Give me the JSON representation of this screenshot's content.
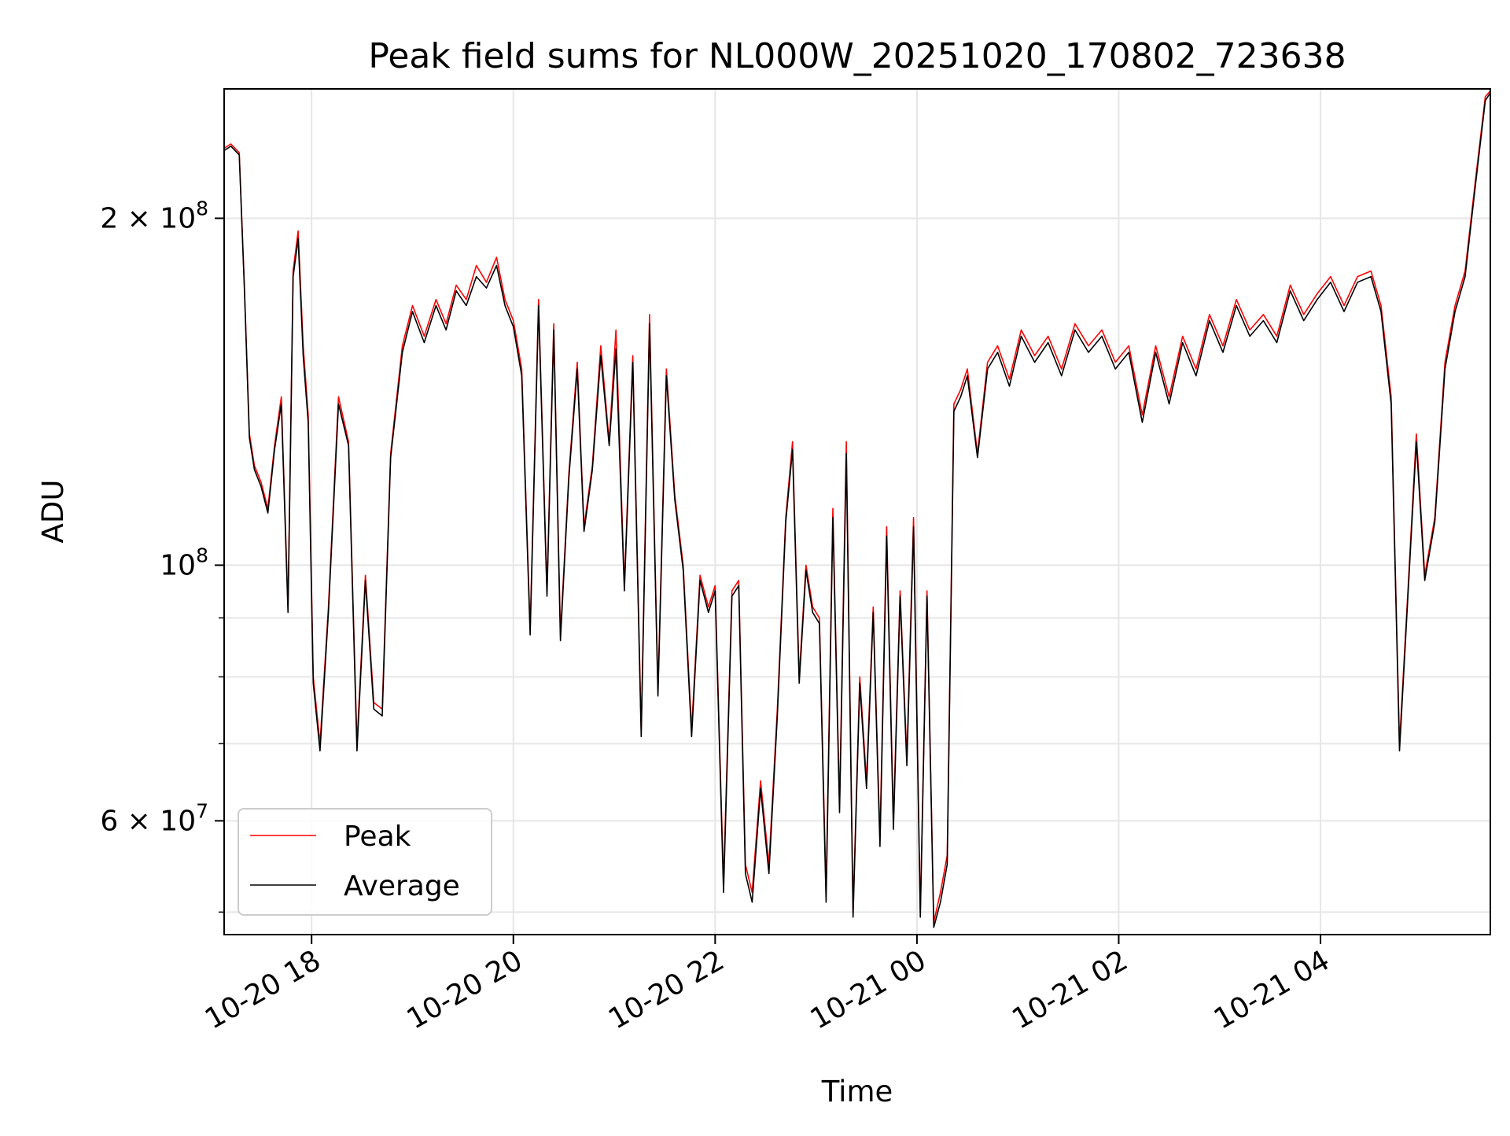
{
  "chart_data": {
    "type": "line",
    "title": "Peak field sums for NL000W_20251020_170802_723638",
    "xlabel": "Time",
    "ylabel": "ADU",
    "y_scale": "log",
    "x_axis_type": "time",
    "xlim": [
      "2025-10-20 17:08",
      "2025-10-21 05:41"
    ],
    "ylim": [
      47800000,
      259000000
    ],
    "x_ticks": [
      {
        "t": "2025-10-20 18:00",
        "label": "10-20 18"
      },
      {
        "t": "2025-10-20 20:00",
        "label": "10-20 20"
      },
      {
        "t": "2025-10-20 22:00",
        "label": "10-20 22"
      },
      {
        "t": "2025-10-21 00:00",
        "label": "10-21 00"
      },
      {
        "t": "2025-10-21 02:00",
        "label": "10-21 02"
      },
      {
        "t": "2025-10-21 04:00",
        "label": "10-21 04"
      }
    ],
    "y_major_ticks": [
      {
        "v": 60000000,
        "mant": "6",
        "exp": "7"
      },
      {
        "v": 100000000,
        "mant": "",
        "exp": "8"
      },
      {
        "v": 200000000,
        "mant": "2",
        "exp": "8"
      }
    ],
    "y_minor_ticks": [
      50000000,
      70000000,
      80000000,
      90000000
    ],
    "grid": true,
    "legend_position": "bottom-left",
    "series": [
      {
        "name": "Peak",
        "color": "#ff0000",
        "x": [
          "2025-10-20 17:08",
          "2025-10-20 17:12",
          "2025-10-20 17:17",
          "2025-10-20 17:20",
          "2025-10-20 17:23",
          "2025-10-20 17:26",
          "2025-10-20 17:30",
          "2025-10-20 17:34",
          "2025-10-20 17:38",
          "2025-10-20 17:42",
          "2025-10-20 17:46",
          "2025-10-20 17:49",
          "2025-10-20 17:52",
          "2025-10-20 17:55",
          "2025-10-20 17:58",
          "2025-10-20 18:01",
          "2025-10-20 18:05",
          "2025-10-20 18:10",
          "2025-10-20 18:16",
          "2025-10-20 18:22",
          "2025-10-20 18:27",
          "2025-10-20 18:32",
          "2025-10-20 18:37",
          "2025-10-20 18:42",
          "2025-10-20 18:47",
          "2025-10-20 18:54",
          "2025-10-20 19:00",
          "2025-10-20 19:07",
          "2025-10-20 19:14",
          "2025-10-20 19:20",
          "2025-10-20 19:26",
          "2025-10-20 19:32",
          "2025-10-20 19:38",
          "2025-10-20 19:44",
          "2025-10-20 19:50",
          "2025-10-20 19:55",
          "2025-10-20 20:00",
          "2025-10-20 20:05",
          "2025-10-20 20:10",
          "2025-10-20 20:15",
          "2025-10-20 20:20",
          "2025-10-20 20:24",
          "2025-10-20 20:28",
          "2025-10-20 20:33",
          "2025-10-20 20:38",
          "2025-10-20 20:42",
          "2025-10-20 20:47",
          "2025-10-20 20:52",
          "2025-10-20 20:57",
          "2025-10-20 21:01",
          "2025-10-20 21:06",
          "2025-10-20 21:11",
          "2025-10-20 21:16",
          "2025-10-20 21:21",
          "2025-10-20 21:26",
          "2025-10-20 21:31",
          "2025-10-20 21:36",
          "2025-10-20 21:41",
          "2025-10-20 21:46",
          "2025-10-20 21:51",
          "2025-10-20 21:56",
          "2025-10-20 22:00",
          "2025-10-20 22:05",
          "2025-10-20 22:10",
          "2025-10-20 22:14",
          "2025-10-20 22:18",
          "2025-10-20 22:22",
          "2025-10-20 22:27",
          "2025-10-20 22:32",
          "2025-10-20 22:37",
          "2025-10-20 22:42",
          "2025-10-20 22:46",
          "2025-10-20 22:50",
          "2025-10-20 22:54",
          "2025-10-20 22:58",
          "2025-10-20 23:02",
          "2025-10-20 23:06",
          "2025-10-20 23:10",
          "2025-10-20 23:14",
          "2025-10-20 23:18",
          "2025-10-20 23:22",
          "2025-10-20 23:26",
          "2025-10-20 23:30",
          "2025-10-20 23:34",
          "2025-10-20 23:38",
          "2025-10-20 23:42",
          "2025-10-20 23:46",
          "2025-10-20 23:50",
          "2025-10-20 23:54",
          "2025-10-20 23:58",
          "2025-10-21 00:02",
          "2025-10-21 00:06",
          "2025-10-21 00:10",
          "2025-10-21 00:14",
          "2025-10-21 00:18",
          "2025-10-21 00:22",
          "2025-10-21 00:26",
          "2025-10-21 00:30",
          "2025-10-21 00:36",
          "2025-10-21 00:42",
          "2025-10-21 00:48",
          "2025-10-21 00:55",
          "2025-10-21 01:02",
          "2025-10-21 01:10",
          "2025-10-21 01:18",
          "2025-10-21 01:26",
          "2025-10-21 01:34",
          "2025-10-21 01:42",
          "2025-10-21 01:50",
          "2025-10-21 01:58",
          "2025-10-21 02:06",
          "2025-10-21 02:14",
          "2025-10-21 02:22",
          "2025-10-21 02:30",
          "2025-10-21 02:38",
          "2025-10-21 02:46",
          "2025-10-21 02:54",
          "2025-10-21 03:02",
          "2025-10-21 03:10",
          "2025-10-21 03:18",
          "2025-10-21 03:26",
          "2025-10-21 03:34",
          "2025-10-21 03:42",
          "2025-10-21 03:50",
          "2025-10-21 03:58",
          "2025-10-21 04:06",
          "2025-10-21 04:14",
          "2025-10-21 04:22",
          "2025-10-21 04:30",
          "2025-10-21 04:36",
          "2025-10-21 04:42",
          "2025-10-21 04:47",
          "2025-10-21 04:52",
          "2025-10-21 04:57",
          "2025-10-21 05:02",
          "2025-10-21 05:08",
          "2025-10-21 05:14",
          "2025-10-21 05:20",
          "2025-10-21 05:26",
          "2025-10-21 05:32",
          "2025-10-21 05:38",
          "2025-10-21 05:41"
        ],
        "y": [
          230000000,
          232000000,
          228000000,
          175000000,
          130000000,
          122000000,
          118000000,
          112000000,
          127000000,
          140000000,
          92000000,
          180000000,
          195000000,
          155000000,
          135000000,
          80000000,
          70000000,
          92000000,
          140000000,
          128000000,
          70000000,
          98000000,
          76000000,
          75000000,
          125000000,
          155000000,
          168000000,
          158000000,
          170000000,
          162000000,
          175000000,
          170000000,
          182000000,
          176000000,
          185000000,
          170000000,
          163000000,
          148000000,
          88000000,
          170000000,
          95000000,
          162000000,
          87000000,
          120000000,
          150000000,
          108000000,
          122000000,
          155000000,
          128000000,
          160000000,
          96000000,
          152000000,
          72000000,
          165000000,
          78000000,
          148000000,
          115000000,
          100000000,
          72000000,
          98000000,
          92000000,
          96000000,
          53000000,
          95000000,
          97000000,
          55000000,
          52000000,
          65000000,
          55000000,
          75000000,
          110000000,
          128000000,
          80000000,
          100000000,
          92000000,
          90000000,
          52000000,
          112000000,
          62000000,
          128000000,
          50000000,
          80000000,
          65000000,
          92000000,
          58000000,
          108000000,
          60000000,
          95000000,
          68000000,
          110000000,
          50000000,
          95000000,
          49000000,
          52000000,
          56000000,
          138000000,
          142000000,
          148000000,
          125000000,
          150000000,
          155000000,
          145000000,
          160000000,
          152000000,
          158000000,
          148000000,
          162000000,
          155000000,
          160000000,
          150000000,
          155000000,
          135000000,
          155000000,
          140000000,
          158000000,
          148000000,
          165000000,
          155000000,
          170000000,
          160000000,
          165000000,
          158000000,
          175000000,
          165000000,
          172000000,
          178000000,
          168000000,
          178000000,
          180000000,
          168000000,
          140000000,
          70000000,
          95000000,
          130000000,
          98000000,
          110000000,
          150000000,
          168000000,
          180000000,
          215000000,
          255000000,
          258000000
        ]
      },
      {
        "name": "Average",
        "color": "#000000",
        "x": [
          "2025-10-20 17:08",
          "2025-10-20 17:12",
          "2025-10-20 17:17",
          "2025-10-20 17:20",
          "2025-10-20 17:23",
          "2025-10-20 17:26",
          "2025-10-20 17:30",
          "2025-10-20 17:34",
          "2025-10-20 17:38",
          "2025-10-20 17:42",
          "2025-10-20 17:46",
          "2025-10-20 17:49",
          "2025-10-20 17:52",
          "2025-10-20 17:55",
          "2025-10-20 17:58",
          "2025-10-20 18:01",
          "2025-10-20 18:05",
          "2025-10-20 18:10",
          "2025-10-20 18:16",
          "2025-10-20 18:22",
          "2025-10-20 18:27",
          "2025-10-20 18:32",
          "2025-10-20 18:37",
          "2025-10-20 18:42",
          "2025-10-20 18:47",
          "2025-10-20 18:54",
          "2025-10-20 19:00",
          "2025-10-20 19:07",
          "2025-10-20 19:14",
          "2025-10-20 19:20",
          "2025-10-20 19:26",
          "2025-10-20 19:32",
          "2025-10-20 19:38",
          "2025-10-20 19:44",
          "2025-10-20 19:50",
          "2025-10-20 19:55",
          "2025-10-20 20:00",
          "2025-10-20 20:05",
          "2025-10-20 20:10",
          "2025-10-20 20:15",
          "2025-10-20 20:20",
          "2025-10-20 20:24",
          "2025-10-20 20:28",
          "2025-10-20 20:33",
          "2025-10-20 20:38",
          "2025-10-20 20:42",
          "2025-10-20 20:47",
          "2025-10-20 20:52",
          "2025-10-20 20:57",
          "2025-10-20 21:01",
          "2025-10-20 21:06",
          "2025-10-20 21:11",
          "2025-10-20 21:16",
          "2025-10-20 21:21",
          "2025-10-20 21:26",
          "2025-10-20 21:31",
          "2025-10-20 21:36",
          "2025-10-20 21:41",
          "2025-10-20 21:46",
          "2025-10-20 21:51",
          "2025-10-20 21:56",
          "2025-10-20 22:00",
          "2025-10-20 22:05",
          "2025-10-20 22:10",
          "2025-10-20 22:14",
          "2025-10-20 22:18",
          "2025-10-20 22:22",
          "2025-10-20 22:27",
          "2025-10-20 22:32",
          "2025-10-20 22:37",
          "2025-10-20 22:42",
          "2025-10-20 22:46",
          "2025-10-20 22:50",
          "2025-10-20 22:54",
          "2025-10-20 22:58",
          "2025-10-20 23:02",
          "2025-10-20 23:06",
          "2025-10-20 23:10",
          "2025-10-20 23:14",
          "2025-10-20 23:18",
          "2025-10-20 23:22",
          "2025-10-20 23:26",
          "2025-10-20 23:30",
          "2025-10-20 23:34",
          "2025-10-20 23:38",
          "2025-10-20 23:42",
          "2025-10-20 23:46",
          "2025-10-20 23:50",
          "2025-10-20 23:54",
          "2025-10-20 23:58",
          "2025-10-21 00:02",
          "2025-10-21 00:06",
          "2025-10-21 00:10",
          "2025-10-21 00:14",
          "2025-10-21 00:18",
          "2025-10-21 00:22",
          "2025-10-21 00:26",
          "2025-10-21 00:30",
          "2025-10-21 00:36",
          "2025-10-21 00:42",
          "2025-10-21 00:48",
          "2025-10-21 00:55",
          "2025-10-21 01:02",
          "2025-10-21 01:10",
          "2025-10-21 01:18",
          "2025-10-21 01:26",
          "2025-10-21 01:34",
          "2025-10-21 01:42",
          "2025-10-21 01:50",
          "2025-10-21 01:58",
          "2025-10-21 02:06",
          "2025-10-21 02:14",
          "2025-10-21 02:22",
          "2025-10-21 02:30",
          "2025-10-21 02:38",
          "2025-10-21 02:46",
          "2025-10-21 02:54",
          "2025-10-21 03:02",
          "2025-10-21 03:10",
          "2025-10-21 03:18",
          "2025-10-21 03:26",
          "2025-10-21 03:34",
          "2025-10-21 03:42",
          "2025-10-21 03:50",
          "2025-10-21 03:58",
          "2025-10-21 04:06",
          "2025-10-21 04:14",
          "2025-10-21 04:22",
          "2025-10-21 04:30",
          "2025-10-21 04:36",
          "2025-10-21 04:42",
          "2025-10-21 04:47",
          "2025-10-21 04:52",
          "2025-10-21 04:57",
          "2025-10-21 05:02",
          "2025-10-21 05:08",
          "2025-10-21 05:14",
          "2025-10-21 05:20",
          "2025-10-21 05:26",
          "2025-10-21 05:32",
          "2025-10-21 05:38",
          "2025-10-21 05:41"
        ],
        "y": [
          229000000,
          231000000,
          227000000,
          174000000,
          129000000,
          121000000,
          117000000,
          111000000,
          126000000,
          138000000,
          91000000,
          178000000,
          192000000,
          152000000,
          133000000,
          79000000,
          69000000,
          91000000,
          138000000,
          127000000,
          69000000,
          97000000,
          75000000,
          74000000,
          124000000,
          153000000,
          166000000,
          156000000,
          168000000,
          160000000,
          173000000,
          168000000,
          178000000,
          174000000,
          182000000,
          168000000,
          161000000,
          146000000,
          87000000,
          168000000,
          94000000,
          160000000,
          86000000,
          119000000,
          148000000,
          107000000,
          121000000,
          152000000,
          127000000,
          154000000,
          95000000,
          150000000,
          71000000,
          162000000,
          77000000,
          146000000,
          114000000,
          99000000,
          71000000,
          97000000,
          91000000,
          95000000,
          52000000,
          94000000,
          96000000,
          54000000,
          51000000,
          64000000,
          54000000,
          74000000,
          109000000,
          126000000,
          79000000,
          99000000,
          91000000,
          89000000,
          51000000,
          110000000,
          61000000,
          125000000,
          49500000,
          79000000,
          64000000,
          91000000,
          57000000,
          106000000,
          59000000,
          94000000,
          67000000,
          108000000,
          49500000,
          94000000,
          48500000,
          51000000,
          55000000,
          136000000,
          140000000,
          146000000,
          124000000,
          148000000,
          153000000,
          143000000,
          158000000,
          150000000,
          156000000,
          146000000,
          160000000,
          153000000,
          158000000,
          148000000,
          153000000,
          133000000,
          153000000,
          138000000,
          156000000,
          146000000,
          163000000,
          153000000,
          168000000,
          158000000,
          163000000,
          156000000,
          173000000,
          163000000,
          170000000,
          176000000,
          166000000,
          176000000,
          178000000,
          166000000,
          138000000,
          69000000,
          94000000,
          128000000,
          97000000,
          109000000,
          148000000,
          166000000,
          178000000,
          213000000,
          253000000,
          257000000
        ]
      }
    ]
  }
}
